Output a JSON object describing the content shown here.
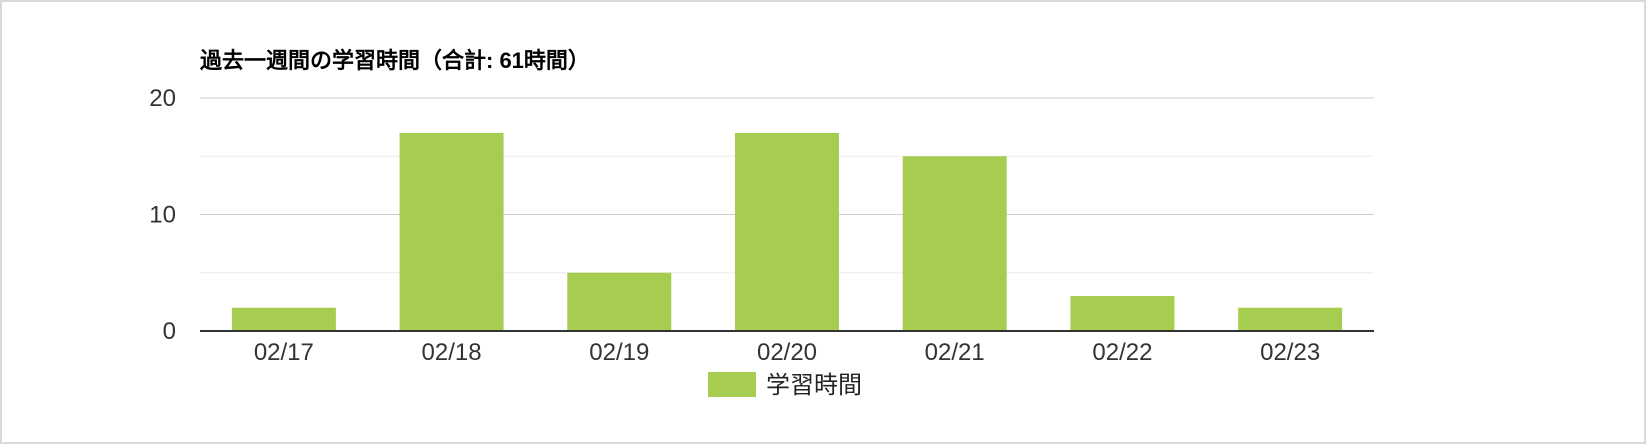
{
  "chart_data": {
    "type": "bar",
    "title": "過去一週間の学習時間（合計: 61時間）",
    "categories": [
      "02/17",
      "02/18",
      "02/19",
      "02/20",
      "02/21",
      "02/22",
      "02/23"
    ],
    "series": [
      {
        "name": "学習時間",
        "values": [
          2,
          17,
          5,
          17,
          15,
          3,
          2
        ],
        "color": "#a6cd50"
      }
    ],
    "ylim": [
      0,
      20
    ],
    "yticks": [
      0,
      10,
      20
    ],
    "grid": true,
    "legend_position": "bottom"
  }
}
